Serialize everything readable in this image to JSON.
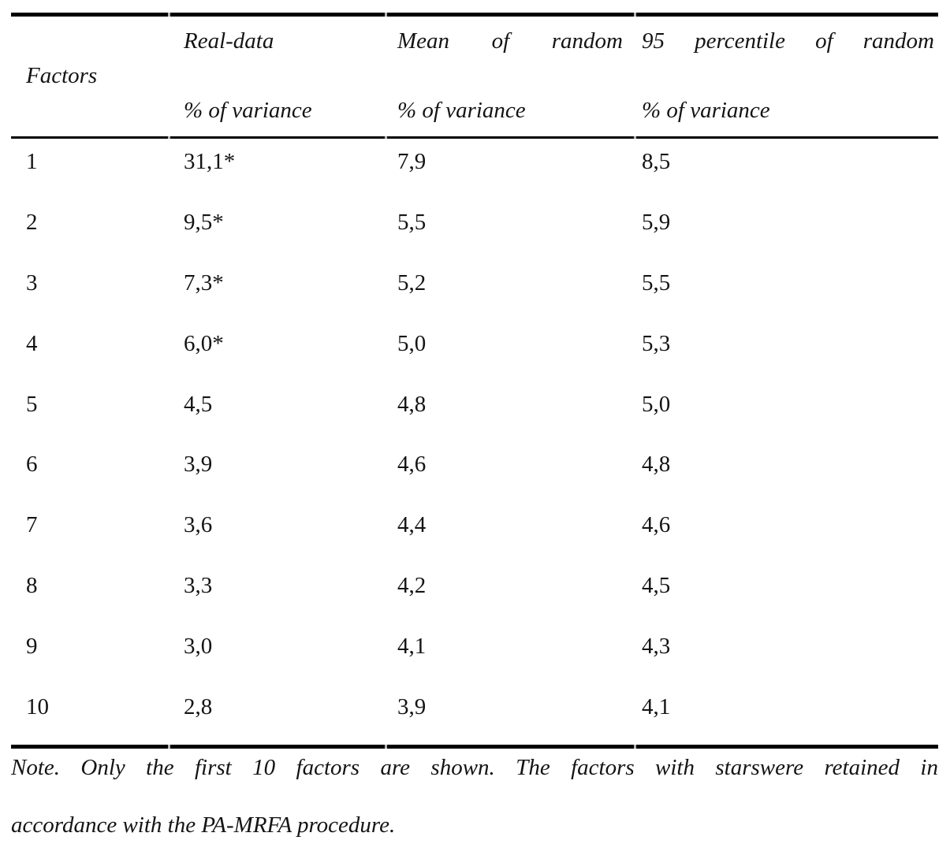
{
  "table": {
    "header": {
      "factors": "Factors",
      "col2_line1": "Real-data",
      "col2_line2": "% of variance",
      "col3_line1": "Mean of random",
      "col3_line2": "% of variance",
      "col4_line1": "95 percentile of random",
      "col4_line2": "% of variance"
    },
    "rows": [
      {
        "factor": "1",
        "real": "31,1*",
        "mean": "7,9",
        "p95": "8,5"
      },
      {
        "factor": "2",
        "real": "9,5*",
        "mean": "5,5",
        "p95": "5,9"
      },
      {
        "factor": "3",
        "real": "7,3*",
        "mean": "5,2",
        "p95": "5,5"
      },
      {
        "factor": "4",
        "real": "6,0*",
        "mean": "5,0",
        "p95": "5,3"
      },
      {
        "factor": "5",
        "real": "4,5",
        "mean": "4,8",
        "p95": "5,0"
      },
      {
        "factor": "6",
        "real": "3,9",
        "mean": "4,6",
        "p95": "4,8"
      },
      {
        "factor": "7",
        "real": "3,6",
        "mean": "4,4",
        "p95": "4,6"
      },
      {
        "factor": "8",
        "real": "3,3",
        "mean": "4,2",
        "p95": "4,5"
      },
      {
        "factor": "9",
        "real": "3,0",
        "mean": "4,1",
        "p95": "4,3"
      },
      {
        "factor": "10",
        "real": "2,8",
        "mean": "3,9",
        "p95": "4,1"
      }
    ]
  },
  "note": {
    "line1": "Note. Only the first 10 factors are shown. The factors with starswere retained in",
    "line2": "accordance with the PA-MRFA procedure."
  },
  "colors": {
    "background": "#ffffff",
    "text": "#141414",
    "rule": "#000000",
    "notch": "#b5b5b5"
  }
}
